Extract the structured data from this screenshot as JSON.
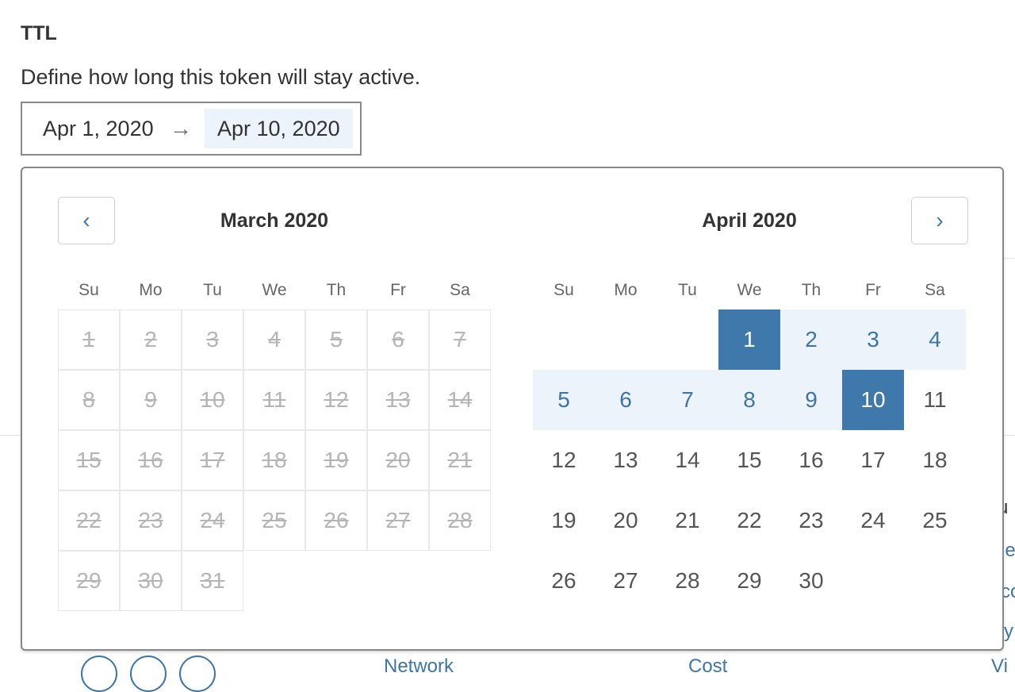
{
  "section": {
    "title": "TTL",
    "description": "Define how long this token will stay active."
  },
  "range": {
    "start": "Apr 1, 2020",
    "arrow": "→",
    "end": "Apr 10, 2020"
  },
  "calendar": {
    "prev_icon": "‹",
    "next_icon": "›",
    "weekdays": [
      "Su",
      "Mo",
      "Tu",
      "We",
      "Th",
      "Fr",
      "Sa"
    ],
    "months": [
      {
        "title": "March 2020",
        "first_weekday": 0,
        "days": 31,
        "disabled_all": true
      },
      {
        "title": "April 2020",
        "first_weekday": 3,
        "days": 30,
        "selected_start": 1,
        "selected_end": 10
      }
    ]
  },
  "background": {
    "fragments": [
      "u",
      "le",
      "co",
      "y",
      "Network",
      "Cost",
      "Vi"
    ]
  },
  "colors": {
    "accent": "#3f78ab",
    "range_bg": "#ecf3fa",
    "disabled": "#b5b5b5"
  }
}
